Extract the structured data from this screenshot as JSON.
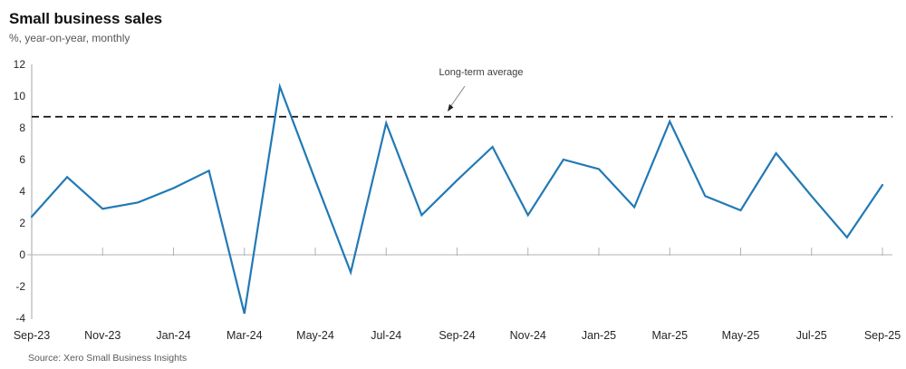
{
  "header": {
    "title": "Small business sales",
    "subtitle": "%, year-on-year, monthly"
  },
  "footer": {
    "source": "Source: Xero Small Business Insights"
  },
  "chart_data": {
    "type": "line",
    "title": "Small business sales",
    "subtitle": "%, year-on-year, monthly",
    "x": [
      "Sep-23",
      "Oct-23",
      "Nov-23",
      "Dec-23",
      "Jan-24",
      "Feb-24",
      "Mar-24",
      "Apr-24",
      "May-24",
      "Jun-24",
      "Jul-24",
      "Aug-24",
      "Sep-24",
      "Oct-24",
      "Nov-24",
      "Dec-24",
      "Jan-25",
      "Feb-25",
      "Mar-25",
      "Apr-25",
      "May-25",
      "Jun-25",
      "Jul-25",
      "Aug-25",
      "Sep-25"
    ],
    "series": [
      {
        "name": "Small business sales (% y/y)",
        "color": "#2279B5",
        "values": [
          2.4,
          4.9,
          2.9,
          3.3,
          4.2,
          5.3,
          -3.7,
          10.6,
          4.7,
          -1.1,
          8.3,
          2.5,
          4.7,
          6.8,
          2.5,
          6.0,
          5.4,
          3.0,
          8.4,
          3.7,
          2.8,
          6.4,
          3.7,
          1.1,
          4.4
        ]
      }
    ],
    "reference_line": {
      "label": "Long-term average",
      "value": 8.7,
      "style": "dashed",
      "color": "#111111"
    },
    "x_tick_labels": [
      "Sep-23",
      "Nov-23",
      "Jan-24",
      "Mar-24",
      "May-24",
      "Jul-24",
      "Sep-24",
      "Nov-24",
      "Jan-25",
      "Mar-25",
      "May-25",
      "Jul-25",
      "Sep-25"
    ],
    "x_label_every": 2,
    "y_ticks": [
      -4,
      -2,
      0,
      2,
      4,
      6,
      8,
      10,
      12
    ],
    "ylim": [
      -4,
      12
    ],
    "grid": "zero-line-only",
    "legend": "none",
    "source": "Source: Xero Small Business Insights",
    "colors": {
      "line": "#2279B5",
      "reference": "#111111",
      "axis": "#b3b3b3",
      "tick_text": "#262626",
      "annotation_text": "#3d3d3d",
      "arrow": "#888888"
    }
  }
}
